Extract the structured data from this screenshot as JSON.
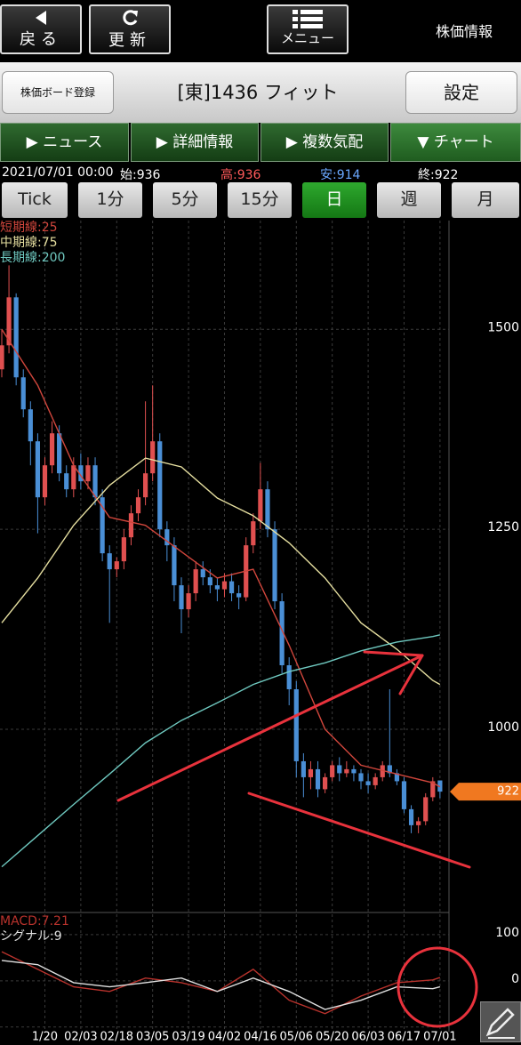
{
  "top_bar": {
    "back": "戻る",
    "refresh": "更新",
    "menu": "メニュー",
    "section": "株価情報"
  },
  "header": {
    "register": "株価ボード登録",
    "title": "[東]1436 フィット",
    "settings": "設定"
  },
  "tabs": [
    "ニュース",
    "詳細情報",
    "複数気配",
    "チャート"
  ],
  "quote": {
    "datetime": "2021/07/01 00:00",
    "open": "始:936",
    "high": "高:936",
    "low": "安:914",
    "close": "終:922"
  },
  "periods": [
    "Tick",
    "1分",
    "5分",
    "15分",
    "日",
    "週",
    "月"
  ],
  "chart_data": [
    {
      "type": "candlestick",
      "categories": [
        null,
        null,
        null,
        null,
        null,
        null,
        "1/20",
        null,
        null,
        null,
        null,
        "02/03",
        null,
        null,
        null,
        null,
        "02/18",
        null,
        null,
        null,
        null,
        "03/05",
        null,
        null,
        null,
        null,
        "03/19",
        null,
        null,
        null,
        null,
        "04/02",
        null,
        null,
        null,
        null,
        "04/16",
        null,
        null,
        null,
        null,
        "05/06",
        null,
        null,
        null,
        null,
        "05/20",
        null,
        null,
        null,
        null,
        "06/03",
        null,
        null,
        null,
        null,
        "06/17",
        null,
        null,
        null,
        null,
        "07/01"
      ],
      "open": [
        1450,
        1480,
        1540,
        1440,
        1400,
        1360,
        1290,
        1330,
        1370,
        1320,
        1300,
        1330,
        1310,
        1330,
        1290,
        1220,
        1200,
        1210,
        1240,
        1270,
        1290,
        1320,
        1360,
        1250,
        1230,
        1180,
        1150,
        1170,
        1200,
        1190,
        1180,
        1175,
        1185,
        1170,
        1165,
        1230,
        1260,
        1300,
        1250,
        1160,
        1080,
        1050,
        960,
        940,
        950,
        925,
        940,
        955,
        945,
        950,
        945,
        935,
        930,
        940,
        955,
        945,
        935,
        900,
        880,
        885,
        915,
        936
      ],
      "high": [
        1500,
        1580,
        1545,
        1450,
        1410,
        1370,
        1340,
        1385,
        1380,
        1330,
        1340,
        1345,
        1340,
        1340,
        1300,
        1230,
        1215,
        1250,
        1280,
        1300,
        1410,
        1430,
        1370,
        1260,
        1240,
        1190,
        1180,
        1210,
        1210,
        1200,
        1190,
        1195,
        1195,
        1180,
        1240,
        1270,
        1333,
        1310,
        1260,
        1170,
        1090,
        1060,
        970,
        960,
        960,
        945,
        960,
        965,
        960,
        955,
        950,
        945,
        945,
        960,
        1050,
        950,
        940,
        905,
        890,
        920,
        940,
        936
      ],
      "low": [
        1440,
        1470,
        1430,
        1390,
        1330,
        1245,
        1280,
        1320,
        1310,
        1290,
        1290,
        1300,
        1300,
        1280,
        1210,
        1133,
        1190,
        1200,
        1230,
        1260,
        1280,
        1310,
        1240,
        1210,
        1160,
        1120,
        1140,
        1160,
        1180,
        1170,
        1160,
        1165,
        1160,
        1150,
        1160,
        1220,
        1250,
        1240,
        1150,
        1070,
        1030,
        940,
        915,
        925,
        915,
        920,
        935,
        935,
        940,
        935,
        925,
        920,
        925,
        935,
        940,
        930,
        895,
        870,
        870,
        880,
        910,
        914
      ],
      "close": [
        1480,
        1540,
        1440,
        1400,
        1360,
        1290,
        1330,
        1370,
        1320,
        1300,
        1330,
        1310,
        1330,
        1290,
        1220,
        1200,
        1210,
        1240,
        1270,
        1290,
        1320,
        1360,
        1250,
        1230,
        1180,
        1150,
        1170,
        1200,
        1190,
        1180,
        1175,
        1185,
        1170,
        1165,
        1230,
        1260,
        1300,
        1250,
        1160,
        1080,
        1050,
        960,
        940,
        950,
        925,
        940,
        955,
        945,
        950,
        945,
        935,
        930,
        940,
        955,
        945,
        935,
        900,
        880,
        885,
        915,
        935,
        922
      ],
      "up_color": "#e05050",
      "down_color": "#4a8fd6",
      "series": [
        {
          "name": "短期線:25",
          "color": "#d0463c",
          "x": [
            0,
            5,
            10,
            15,
            20,
            25,
            30,
            35,
            40,
            45,
            50,
            55,
            60,
            61
          ],
          "values": [
            1500,
            1430,
            1330,
            1265,
            1255,
            1222,
            1189,
            1200,
            1105,
            1000,
            955,
            944,
            933,
            928
          ]
        },
        {
          "name": "中期線:75",
          "color": "#e6dfa0",
          "x": [
            0,
            5,
            10,
            15,
            20,
            25,
            30,
            35,
            40,
            45,
            50,
            55,
            60,
            61
          ],
          "values": [
            1133,
            1189,
            1255,
            1305,
            1339,
            1328,
            1289,
            1267,
            1233,
            1189,
            1133,
            1100,
            1061,
            1056
          ]
        },
        {
          "name": "長期線:200",
          "color": "#6fc9c0",
          "x": [
            0,
            5,
            10,
            15,
            20,
            25,
            30,
            35,
            40,
            45,
            50,
            55,
            60,
            61
          ],
          "values": [
            828,
            867,
            906,
            944,
            983,
            1011,
            1033,
            1056,
            1072,
            1083,
            1098,
            1109,
            1116,
            1118
          ]
        }
      ],
      "ylim": [
        772,
        1636
      ],
      "yticks": [
        1000,
        1250,
        1500
      ],
      "grid": true,
      "last_price": 922
    },
    {
      "type": "line",
      "ylim": [
        -110,
        144
      ],
      "yticks": [
        -100,
        0,
        100
      ],
      "grid": true,
      "series": [
        {
          "name": "MACD:7.21",
          "color": "#b8322c",
          "x": [
            0,
            5,
            10,
            15,
            20,
            25,
            30,
            35,
            40,
            45,
            50,
            55,
            60,
            61
          ],
          "values": [
            63,
            25,
            -13,
            -23,
            6,
            -4,
            -23,
            25,
            -42,
            -71,
            -33,
            -4,
            2,
            7.21
          ]
        },
        {
          "name": "シグナル:9",
          "color": "#e0e0e0",
          "x": [
            0,
            5,
            10,
            15,
            20,
            25,
            30,
            35,
            40,
            45,
            50,
            55,
            60,
            61
          ],
          "values": [
            44,
            35,
            -4,
            -13,
            -4,
            6,
            -23,
            6,
            -23,
            -62,
            -42,
            -13,
            -17,
            -13
          ]
        }
      ]
    }
  ]
}
